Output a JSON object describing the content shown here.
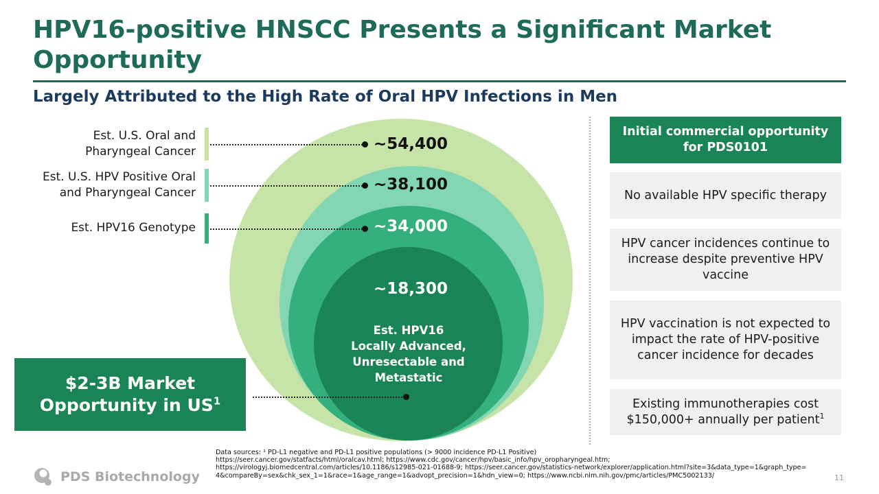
{
  "slide": {
    "title": "HPV16-positive HNSCC Presents a Significant Market Opportunity",
    "subtitle": "Largely Attributed to the High Rate of Oral HPV Infections in Men",
    "page_number": "11"
  },
  "funnel": {
    "labels": [
      {
        "line1": "Est. U.S. Oral and",
        "line2": "Pharyngeal Cancer",
        "color": "#c6e3a8"
      },
      {
        "line1": "Est. U.S. HPV Positive Oral",
        "line2": "and Pharyngeal Cancer",
        "color": "#82d6b3"
      },
      {
        "line1": "Est. HPV16 Genotype",
        "color": "#34b07e"
      }
    ],
    "counts": [
      "~54,400",
      "~38,100",
      "~34,000",
      "~18,300"
    ],
    "core_label": {
      "line1": "Est. HPV16",
      "line2": "Locally Advanced,",
      "line3": "Unresectable and",
      "line4": "Metastatic"
    },
    "colors": {
      "outer": "#c6e3a8",
      "second": "#82d6b3",
      "third": "#34b07e",
      "core": "#1a8456"
    }
  },
  "market": {
    "line1": "$2-3B Market",
    "line2": "Opportunity in US",
    "footnote_mark": "1"
  },
  "right_panel": {
    "header": "Initial commercial opportunity for PDS0101",
    "points": [
      {
        "text": "No available HPV specific therapy"
      },
      {
        "text": "HPV cancer incidences continue to increase despite preventive HPV vaccine"
      },
      {
        "text": "HPV vaccination is not expected to impact the rate of HPV-positive cancer incidence for decades"
      },
      {
        "text": "Existing immunotherapies cost $150,000+ annually per patient",
        "footnote_mark": "1"
      }
    ]
  },
  "sources": {
    "line1": "Data sources: ¹ PD-L1 negative and PD-L1 positive populations (> 9000 incidence  PD-L1 Positive)",
    "line2": "https://seer.cancer.gov/statfacts/html/oralcav.html; https://www.cdc.gov/cancer/hpv/basic_info/hpv_oropharyngeal.htm;",
    "line3": "https://virologyj.biomedcentral.com/articles/10.1186/s12985-021-01688-9; https://seer.cancer.gov/statistics-network/explorer/application.html?site=3&data_type=1&graph_type=",
    "line4": "4&compareBy=sex&chk_sex_1=1&race=1&age_range=1&advopt_precision=1&hdn_view=0; https://www.ncbi.nlm.nih.gov/pmc/articles/PMC5002133/"
  },
  "brand": {
    "name": "PDS Biotechnology"
  }
}
